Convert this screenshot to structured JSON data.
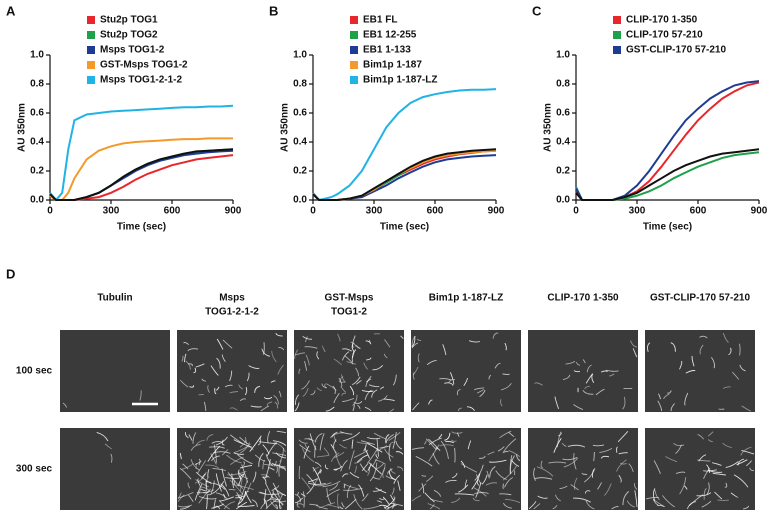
{
  "chart_data": [
    {
      "type": "line",
      "panel": "A",
      "ylabel": "AU 350nm",
      "xlabel": "Time (sec)",
      "x": [
        0,
        30,
        60,
        90,
        120,
        180,
        240,
        300,
        360,
        420,
        480,
        540,
        600,
        660,
        720,
        780,
        840,
        900
      ],
      "xlim": [
        0,
        900
      ],
      "xticks": [
        0,
        300,
        600,
        900
      ],
      "ylim": [
        0,
        1
      ],
      "yticks": [
        {
          "value": 0,
          "label": "0.0"
        },
        0.2,
        0.4,
        0.6,
        0.8,
        {
          "value": 1,
          "label": "1.0"
        }
      ],
      "series": [
        {
          "name": "Stu2p TOG1",
          "color": "#e8262b",
          "values": [
            0.03,
            0,
            0,
            0,
            0,
            0.01,
            0.02,
            0.05,
            0.09,
            0.14,
            0.18,
            0.21,
            0.24,
            0.26,
            0.28,
            0.29,
            0.3,
            0.31
          ]
        },
        {
          "name": "Stu2p TOG2",
          "color": "#1fa04a",
          "values": [
            0.03,
            0,
            0,
            0,
            0,
            0.02,
            0.05,
            0.1,
            0.16,
            0.21,
            0.25,
            0.28,
            0.3,
            0.32,
            0.33,
            0.34,
            0.345,
            0.35
          ]
        },
        {
          "name": "Msps TOG1-2",
          "color": "#1f3c93",
          "values": [
            0.04,
            0,
            0,
            0,
            0,
            0.02,
            0.05,
            0.1,
            0.15,
            0.2,
            0.24,
            0.27,
            0.29,
            0.31,
            0.32,
            0.33,
            0.335,
            0.34
          ]
        },
        {
          "name": "GST-Msps TOG1-2",
          "color": "#f39a2b",
          "values": [
            0.03,
            0,
            0,
            0.05,
            0.15,
            0.28,
            0.34,
            0.37,
            0.39,
            0.4,
            0.405,
            0.41,
            0.415,
            0.42,
            0.42,
            0.425,
            0.425,
            0.425
          ]
        },
        {
          "name": "Msps TOG1-2-1-2",
          "color": "#1fb3e6",
          "values": [
            0.05,
            0,
            0.05,
            0.35,
            0.55,
            0.59,
            0.6,
            0.61,
            0.615,
            0.62,
            0.625,
            0.63,
            0.635,
            0.64,
            0.64,
            0.645,
            0.645,
            0.65
          ]
        },
        {
          "color": "#111111",
          "values": [
            0.04,
            0,
            0,
            0,
            0,
            0.02,
            0.05,
            0.1,
            0.16,
            0.21,
            0.25,
            0.28,
            0.3,
            0.32,
            0.335,
            0.34,
            0.345,
            0.35
          ]
        }
      ]
    },
    {
      "type": "line",
      "panel": "B",
      "ylabel": "AU 350nm",
      "xlabel": "Time (sec)",
      "x": [
        0,
        30,
        60,
        90,
        120,
        180,
        240,
        300,
        360,
        420,
        480,
        540,
        600,
        660,
        720,
        780,
        840,
        900
      ],
      "xlim": [
        0,
        900
      ],
      "xticks": [
        0,
        300,
        600,
        900
      ],
      "ylim": [
        0,
        1
      ],
      "yticks": [
        {
          "value": 0,
          "label": "0.0"
        },
        0.2,
        0.4,
        0.6,
        0.8,
        {
          "value": 1,
          "label": "1.0"
        }
      ],
      "series": [
        {
          "name": "EB1 FL",
          "color": "#e8262b",
          "values": [
            0.04,
            0,
            0,
            0,
            0,
            0.01,
            0.03,
            0.07,
            0.12,
            0.17,
            0.21,
            0.25,
            0.28,
            0.3,
            0.315,
            0.325,
            0.335,
            0.34
          ]
        },
        {
          "name": "EB1 12-255",
          "color": "#1fa04a",
          "values": [
            0.04,
            0,
            0,
            0,
            0,
            0.01,
            0.03,
            0.07,
            0.12,
            0.17,
            0.22,
            0.26,
            0.29,
            0.31,
            0.32,
            0.33,
            0.34,
            0.345
          ]
        },
        {
          "name": "EB1 1-133",
          "color": "#1f3c93",
          "values": [
            0.04,
            0,
            0,
            0,
            0,
            0.01,
            0.02,
            0.06,
            0.1,
            0.15,
            0.19,
            0.23,
            0.26,
            0.28,
            0.29,
            0.3,
            0.305,
            0.31
          ]
        },
        {
          "name": "Bim1p 1-187",
          "color": "#f39a2b",
          "values": [
            0.04,
            0,
            0,
            0,
            0,
            0.01,
            0.03,
            0.07,
            0.13,
            0.18,
            0.22,
            0.26,
            0.29,
            0.31,
            0.32,
            0.33,
            0.335,
            0.34
          ]
        },
        {
          "name": "Bim1p 1-187-LZ",
          "color": "#1fb3e6",
          "values": [
            0.05,
            0,
            0.01,
            0.02,
            0.04,
            0.1,
            0.2,
            0.35,
            0.5,
            0.6,
            0.67,
            0.71,
            0.73,
            0.745,
            0.755,
            0.76,
            0.76,
            0.765
          ]
        },
        {
          "color": "#111111",
          "values": [
            0.04,
            0,
            0,
            0,
            0,
            0.01,
            0.03,
            0.08,
            0.13,
            0.18,
            0.23,
            0.27,
            0.3,
            0.32,
            0.33,
            0.34,
            0.345,
            0.35
          ]
        }
      ]
    },
    {
      "type": "line",
      "panel": "C",
      "ylabel": "AU 350nm",
      "xlabel": "Time (sec)",
      "x": [
        0,
        30,
        60,
        90,
        120,
        180,
        240,
        300,
        360,
        420,
        480,
        540,
        600,
        660,
        720,
        780,
        840,
        900
      ],
      "xlim": [
        0,
        900
      ],
      "xticks": [
        0,
        300,
        600,
        900
      ],
      "ylim": [
        0,
        1
      ],
      "yticks": [
        {
          "value": 0,
          "label": "0.0"
        },
        0.2,
        0.4,
        0.6,
        0.8,
        {
          "value": 1,
          "label": "1.0"
        }
      ],
      "series": [
        {
          "name": "CLIP-170 1-350",
          "color": "#e8262b",
          "values": [
            0.06,
            0,
            0,
            0,
            0,
            0,
            0.02,
            0.06,
            0.13,
            0.23,
            0.34,
            0.45,
            0.55,
            0.63,
            0.7,
            0.75,
            0.79,
            0.81
          ]
        },
        {
          "name": "CLIP-170 57-210",
          "color": "#1fa04a",
          "values": [
            0.09,
            0,
            0,
            0,
            0,
            0,
            0.01,
            0.03,
            0.06,
            0.1,
            0.15,
            0.19,
            0.23,
            0.26,
            0.29,
            0.31,
            0.32,
            0.33
          ]
        },
        {
          "name": "GST-CLIP-170 57-210",
          "color": "#1f3c93",
          "values": [
            0.08,
            0,
            0,
            0,
            0,
            0,
            0.03,
            0.1,
            0.2,
            0.32,
            0.44,
            0.55,
            0.63,
            0.7,
            0.75,
            0.79,
            0.81,
            0.82
          ]
        },
        {
          "color": "#111111",
          "values": [
            0.05,
            0,
            0,
            0,
            0,
            0,
            0.02,
            0.05,
            0.1,
            0.15,
            0.2,
            0.24,
            0.27,
            0.3,
            0.32,
            0.33,
            0.34,
            0.35
          ]
        }
      ]
    }
  ],
  "panel_d": {
    "panel": "D",
    "columns": [
      [
        "Tubulin"
      ],
      [
        "Msps",
        "TOG1-2-1-2"
      ],
      [
        "GST-Msps",
        "TOG1-2"
      ],
      [
        "Bim1p 1-187-LZ"
      ],
      [
        "CLIP-170 1-350"
      ],
      [
        "GST-CLIP-170 57-210"
      ]
    ],
    "rows": [
      "100 sec",
      "300 sec"
    ]
  }
}
